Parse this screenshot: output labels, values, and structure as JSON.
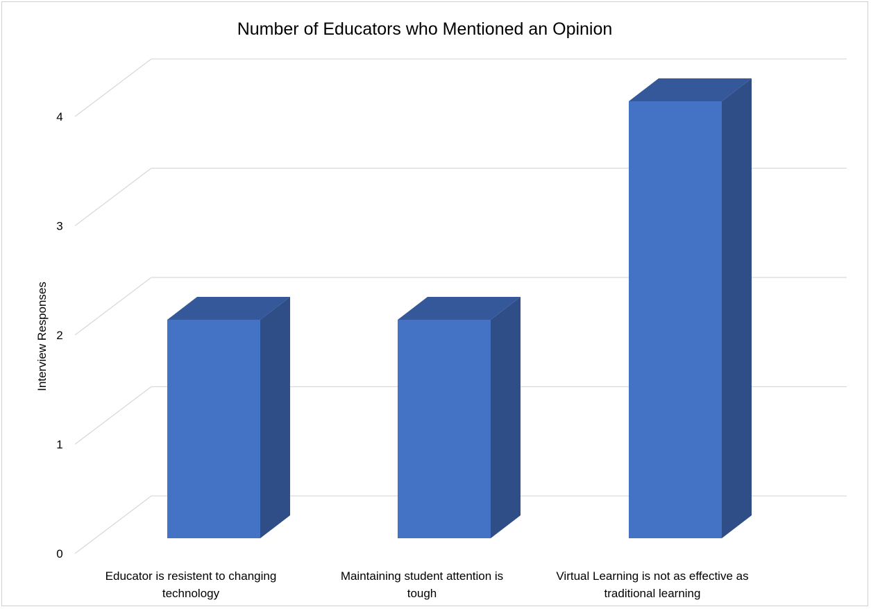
{
  "chart_data": {
    "type": "bar",
    "title": "Number of Educators who Mentioned an Opinion",
    "xlabel": "",
    "ylabel": "Interview Responses",
    "ylim": [
      0,
      4
    ],
    "yticks": [
      "0",
      "1",
      "2",
      "3",
      "4"
    ],
    "grid": true,
    "legend": "none",
    "style": "3d-column",
    "categories": [
      "Educator is resistent to changing technology",
      "Maintaining student attention is tough",
      "Virtual Learning is not as effective as traditional learning"
    ],
    "category_lines": [
      [
        "Educator is resistent to changing",
        "technology"
      ],
      [
        "Maintaining student attention is",
        "tough"
      ],
      [
        "Virtual Learning is not as effective as",
        "traditional learning"
      ]
    ],
    "values": [
      2,
      2,
      4
    ],
    "colors": {
      "front": "#4472c4",
      "side": "#2f4d86",
      "top": "#35589a",
      "gridline": "#d9d9d9"
    }
  }
}
